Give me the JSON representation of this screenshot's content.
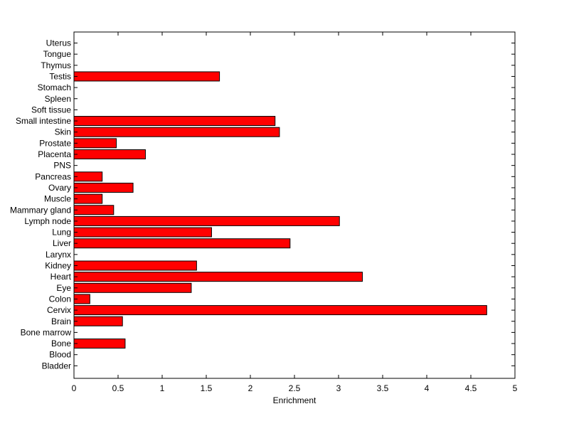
{
  "chart_data": {
    "type": "bar",
    "orientation": "horizontal",
    "title": "",
    "xlabel": "Enrichment",
    "ylabel": "",
    "xlim": [
      0,
      5
    ],
    "xticks": [
      "0",
      "0.5",
      "1",
      "1.5",
      "2",
      "2.5",
      "3",
      "3.5",
      "4",
      "4.5",
      "5"
    ],
    "grid": false,
    "bar_color": "#ff0000",
    "categories": [
      "Bladder",
      "Blood",
      "Bone",
      "Bone marrow",
      "Brain",
      "Cervix",
      "Colon",
      "Eye",
      "Heart",
      "Kidney",
      "Larynx",
      "Liver",
      "Lung",
      "Lymph node",
      "Mammary gland",
      "Muscle",
      "Ovary",
      "Pancreas",
      "PNS",
      "Placenta",
      "Prostate",
      "Skin",
      "Small intestine",
      "Soft tissue",
      "Spleen",
      "Stomach",
      "Testis",
      "Thymus",
      "Tongue",
      "Uterus"
    ],
    "values": [
      0,
      0,
      0.58,
      0,
      0.55,
      4.68,
      0.18,
      1.33,
      3.27,
      1.39,
      0,
      2.45,
      1.56,
      3.01,
      0.45,
      0.32,
      0.67,
      0.32,
      0,
      0.81,
      0.48,
      2.33,
      2.28,
      0,
      0,
      0,
      1.65,
      0,
      0,
      0
    ]
  }
}
